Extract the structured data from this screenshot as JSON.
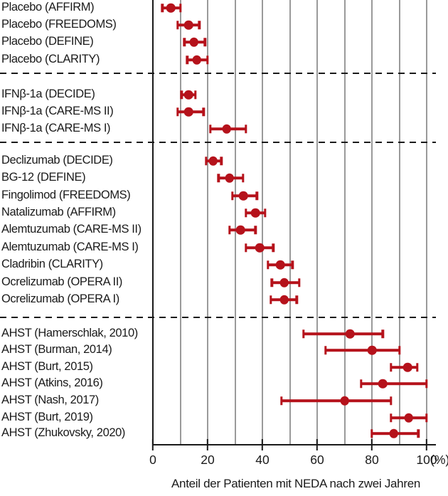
{
  "chart_data": {
    "type": "scatter",
    "subtype": "forest-plot",
    "title": "",
    "xlabel": "Anteil der Patienten mit NEDA nach zwei Jahren",
    "x_unit": "(%)",
    "xlim": [
      0,
      100
    ],
    "x_ticks": [
      "0",
      "20",
      "40",
      "60",
      "80",
      "100"
    ],
    "gridline_step": 10,
    "legend": [],
    "colors": {
      "point": "#b5121b",
      "grid": "#9a9a9a",
      "axis": "#1a1a1a",
      "separator": "#1a1a1a"
    },
    "groups": [
      {
        "rows": [
          {
            "label": "Placebo (AFFIRM)",
            "value": 6.5,
            "lo": 3.5,
            "hi": 10
          },
          {
            "label": "Placebo (FREEDOMS)",
            "value": 13,
            "lo": 9,
            "hi": 17
          },
          {
            "label": "Placebo (DEFINE)",
            "value": 15,
            "lo": 11.5,
            "hi": 19
          },
          {
            "label": "Placebo (CLARITY)",
            "value": 16,
            "lo": 12.5,
            "hi": 20
          }
        ]
      },
      {
        "rows": [
          {
            "label": "IFNβ-1a (DECIDE)",
            "value": 13,
            "lo": 10.5,
            "hi": 15.5
          },
          {
            "label": "IFNβ-1a (CARE-MS II)",
            "value": 13,
            "lo": 9,
            "hi": 18.5
          },
          {
            "label": "IFNβ-1a (CARE-MS I)",
            "value": 27,
            "lo": 21,
            "hi": 34
          }
        ]
      },
      {
        "rows": [
          {
            "label": "Declizumab (DECIDE)",
            "value": 22,
            "lo": 19.5,
            "hi": 25
          },
          {
            "label": "BG-12 (DEFINE)",
            "value": 28,
            "lo": 24,
            "hi": 33
          },
          {
            "label": "Fingolimod (FREEDOMS)",
            "value": 33,
            "lo": 29,
            "hi": 38
          },
          {
            "label": "Natalizumab (AFFIRM)",
            "value": 37.5,
            "lo": 34,
            "hi": 41
          },
          {
            "label": "Alemtuzumab (CARE-MS II)",
            "value": 32,
            "lo": 28,
            "hi": 37.5
          },
          {
            "label": "Alemtuzumab (CARE-MS I)",
            "value": 39,
            "lo": 34,
            "hi": 44
          },
          {
            "label": "Cladribin (CLARITY)",
            "value": 46.5,
            "lo": 42,
            "hi": 51
          },
          {
            "label": "Ocrelizumab (OPERA II)",
            "value": 48,
            "lo": 43.5,
            "hi": 53.5
          },
          {
            "label": "Ocrelizumab (OPERA I)",
            "value": 48,
            "lo": 43,
            "hi": 52.5
          }
        ]
      },
      {
        "rows": [
          {
            "label": "AHST (Hamerschlak, 2010)",
            "value": 72,
            "lo": 55,
            "hi": 84
          },
          {
            "label": "AHST (Burman, 2014)",
            "value": 80,
            "lo": 63,
            "hi": 90
          },
          {
            "label": "AHST (Burt, 2015)",
            "value": 93,
            "lo": 87,
            "hi": 96.5
          },
          {
            "label": "AHST (Atkins, 2016)",
            "value": 84,
            "lo": 76,
            "hi": 100
          },
          {
            "label": "AHST (Nash, 2017)",
            "value": 70,
            "lo": 47,
            "hi": 87
          },
          {
            "label": "AHST (Burt, 2019)",
            "value": 93.5,
            "lo": 87,
            "hi": 100
          },
          {
            "label": "AHST (Zhukovsky, 2020)",
            "value": 88,
            "lo": 80,
            "hi": 97
          }
        ]
      }
    ]
  }
}
